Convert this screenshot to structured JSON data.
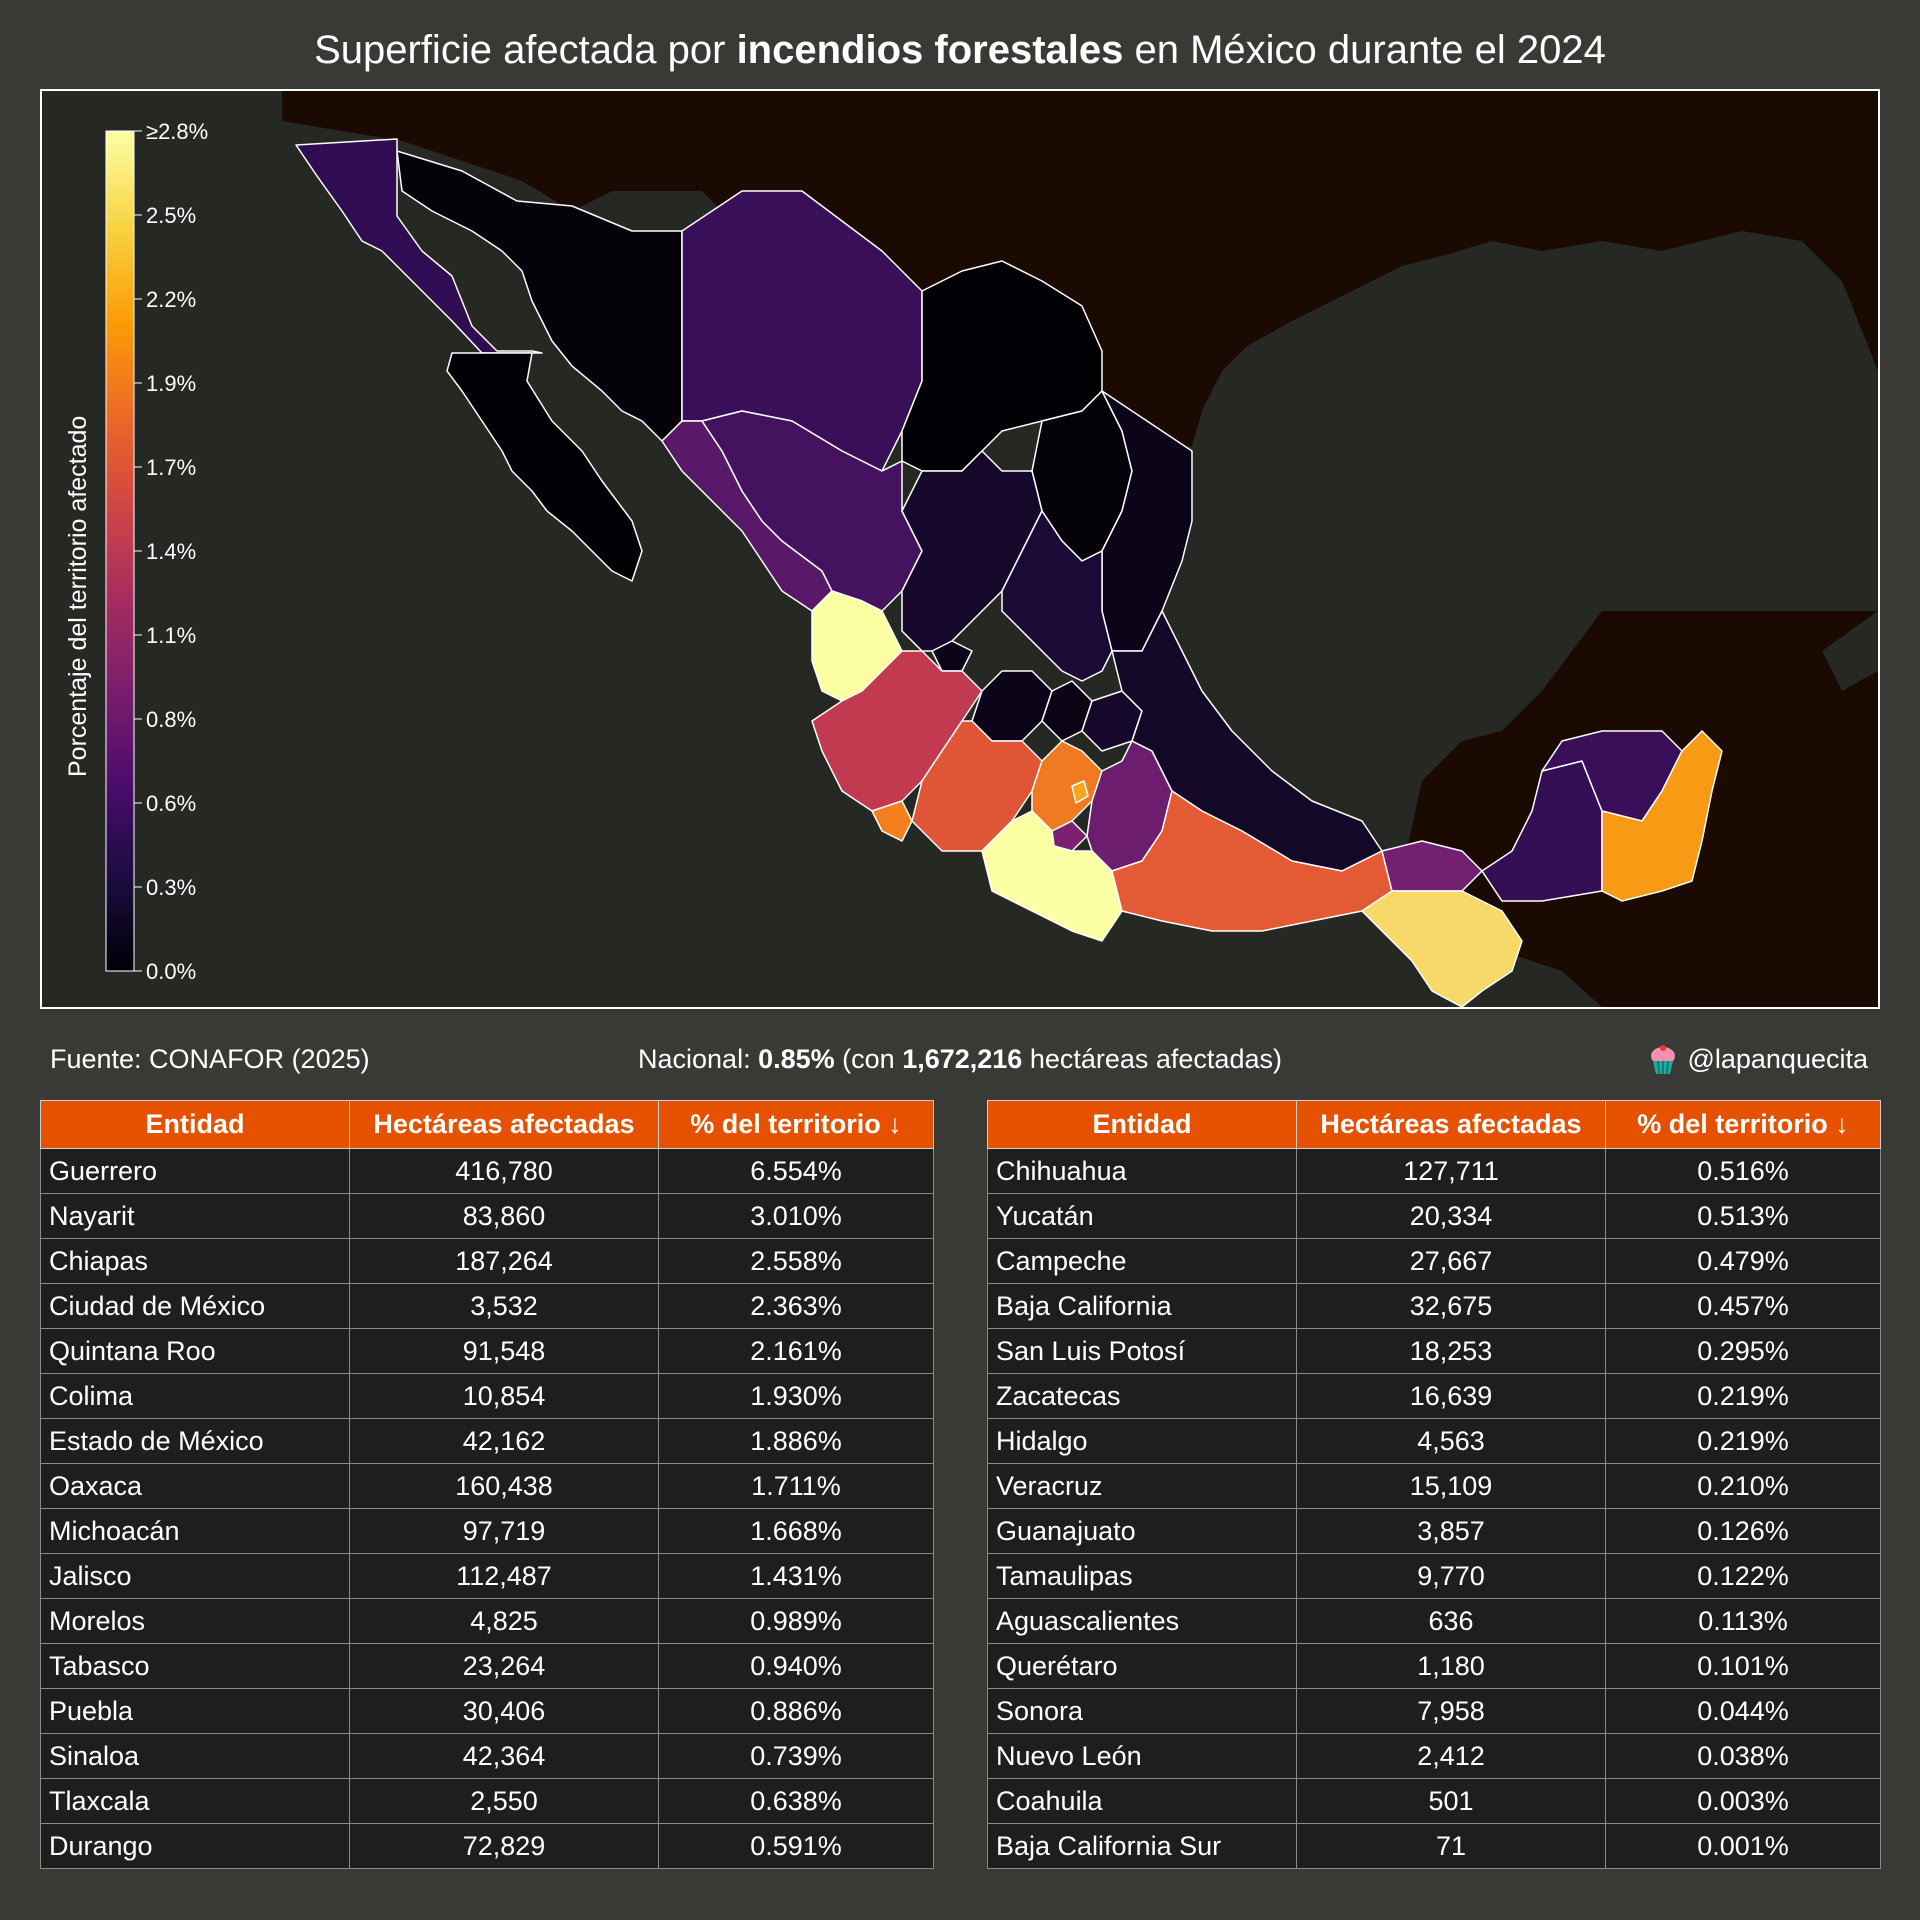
{
  "title": {
    "prefix": "Superficie afectada por ",
    "bold": "incendios forestales",
    "suffix": " en México durante el 2024"
  },
  "legend": {
    "label": "Porcentaje del territorio afectado",
    "ticks": [
      "≥2.8%",
      "2.5%",
      "2.2%",
      "1.9%",
      "1.7%",
      "1.4%",
      "1.1%",
      "0.8%",
      "0.6%",
      "0.3%",
      "0.0%"
    ],
    "range": [
      0.0,
      2.8
    ],
    "colors": [
      "#000004",
      "#1b0c41",
      "#4a0c6b",
      "#781c6d",
      "#a52c60",
      "#cf4446",
      "#ed6925",
      "#fb9b06",
      "#f7d13d",
      "#fcffa4"
    ]
  },
  "colors": {
    "background": "#393a35",
    "ocean": "#262824",
    "neighbor_land": "#1a0a02",
    "header": "#e65100",
    "cell": "#1e1f1d"
  },
  "map_data": {
    "type": "choropleth",
    "regions": [
      {
        "name": "Guerrero",
        "value": 6.554,
        "color": "#fcffa4"
      },
      {
        "name": "Nayarit",
        "value": 3.01,
        "color": "#fcffa4"
      },
      {
        "name": "Chiapas",
        "value": 2.558,
        "color": "#f7d969"
      },
      {
        "name": "Ciudad de México",
        "value": 2.363,
        "color": "#f8a51c"
      },
      {
        "name": "Quintana Roo",
        "value": 2.161,
        "color": "#f99a14"
      },
      {
        "name": "Colima",
        "value": 1.93,
        "color": "#f47f1d"
      },
      {
        "name": "Estado de México",
        "value": 1.886,
        "color": "#f07a22"
      },
      {
        "name": "Oaxaca",
        "value": 1.711,
        "color": "#e35a34"
      },
      {
        "name": "Michoacán",
        "value": 1.668,
        "color": "#df5536"
      },
      {
        "name": "Jalisco",
        "value": 1.431,
        "color": "#c23a50"
      },
      {
        "name": "Morelos",
        "value": 0.989,
        "color": "#7b2170"
      },
      {
        "name": "Tabasco",
        "value": 0.94,
        "color": "#742070"
      },
      {
        "name": "Puebla",
        "value": 0.886,
        "color": "#6c1d6e"
      },
      {
        "name": "Sinaloa",
        "value": 0.739,
        "color": "#5a1869"
      },
      {
        "name": "Tlaxcala",
        "value": 0.638,
        "color": "#4b1463"
      },
      {
        "name": "Durango",
        "value": 0.591,
        "color": "#45125f"
      },
      {
        "name": "Chihuahua",
        "value": 0.516,
        "color": "#3a0f5a"
      },
      {
        "name": "Yucatán",
        "value": 0.513,
        "color": "#390f59"
      },
      {
        "name": "Campeche",
        "value": 0.479,
        "color": "#330e55"
      },
      {
        "name": "Baja California",
        "value": 0.457,
        "color": "#300d53"
      },
      {
        "name": "San Luis Potosí",
        "value": 0.295,
        "color": "#1c0a36"
      },
      {
        "name": "Zacatecas",
        "value": 0.219,
        "color": "#15082a"
      },
      {
        "name": "Hidalgo",
        "value": 0.219,
        "color": "#15082a"
      },
      {
        "name": "Veracruz",
        "value": 0.21,
        "color": "#140828"
      },
      {
        "name": "Guanajuato",
        "value": 0.126,
        "color": "#0c0519"
      },
      {
        "name": "Tamaulipas",
        "value": 0.122,
        "color": "#0c0519"
      },
      {
        "name": "Aguascalientes",
        "value": 0.113,
        "color": "#0b0517"
      },
      {
        "name": "Querétaro",
        "value": 0.101,
        "color": "#0a0415"
      },
      {
        "name": "Sonora",
        "value": 0.044,
        "color": "#050209"
      },
      {
        "name": "Nuevo León",
        "value": 0.038,
        "color": "#040208"
      },
      {
        "name": "Coahuila",
        "value": 0.003,
        "color": "#010004"
      },
      {
        "name": "Baja California Sur",
        "value": 0.001,
        "color": "#010004"
      }
    ]
  },
  "source": "Fuente: CONAFOR (2025)",
  "national": {
    "label": "Nacional: ",
    "pct": "0.85%",
    "mid": " (con ",
    "hectares": "1,672,216",
    "suffix": " hectáreas afectadas)"
  },
  "credit": {
    "handle": "@lapanquecita",
    "icon": "cupcake-icon"
  },
  "table": {
    "headers": [
      "Entidad",
      "Hectáreas afectadas",
      "% del territorio ↓"
    ],
    "left": [
      [
        "Guerrero",
        "416,780",
        "6.554%"
      ],
      [
        "Nayarit",
        "83,860",
        "3.010%"
      ],
      [
        "Chiapas",
        "187,264",
        "2.558%"
      ],
      [
        "Ciudad de México",
        "3,532",
        "2.363%"
      ],
      [
        "Quintana Roo",
        "91,548",
        "2.161%"
      ],
      [
        "Colima",
        "10,854",
        "1.930%"
      ],
      [
        "Estado de México",
        "42,162",
        "1.886%"
      ],
      [
        "Oaxaca",
        "160,438",
        "1.711%"
      ],
      [
        "Michoacán",
        "97,719",
        "1.668%"
      ],
      [
        "Jalisco",
        "112,487",
        "1.431%"
      ],
      [
        "Morelos",
        "4,825",
        "0.989%"
      ],
      [
        "Tabasco",
        "23,264",
        "0.940%"
      ],
      [
        "Puebla",
        "30,406",
        "0.886%"
      ],
      [
        "Sinaloa",
        "42,364",
        "0.739%"
      ],
      [
        "Tlaxcala",
        "2,550",
        "0.638%"
      ],
      [
        "Durango",
        "72,829",
        "0.591%"
      ]
    ],
    "right": [
      [
        "Chihuahua",
        "127,711",
        "0.516%"
      ],
      [
        "Yucatán",
        "20,334",
        "0.513%"
      ],
      [
        "Campeche",
        "27,667",
        "0.479%"
      ],
      [
        "Baja California",
        "32,675",
        "0.457%"
      ],
      [
        "San Luis Potosí",
        "18,253",
        "0.295%"
      ],
      [
        "Zacatecas",
        "16,639",
        "0.219%"
      ],
      [
        "Hidalgo",
        "4,563",
        "0.219%"
      ],
      [
        "Veracruz",
        "15,109",
        "0.210%"
      ],
      [
        "Guanajuato",
        "3,857",
        "0.126%"
      ],
      [
        "Tamaulipas",
        "9,770",
        "0.122%"
      ],
      [
        "Aguascalientes",
        "636",
        "0.113%"
      ],
      [
        "Querétaro",
        "1,180",
        "0.101%"
      ],
      [
        "Sonora",
        "7,958",
        "0.044%"
      ],
      [
        "Nuevo León",
        "2,412",
        "0.038%"
      ],
      [
        "Coahuila",
        "501",
        "0.003%"
      ],
      [
        "Baja California Sur",
        "71",
        "0.001%"
      ]
    ]
  }
}
